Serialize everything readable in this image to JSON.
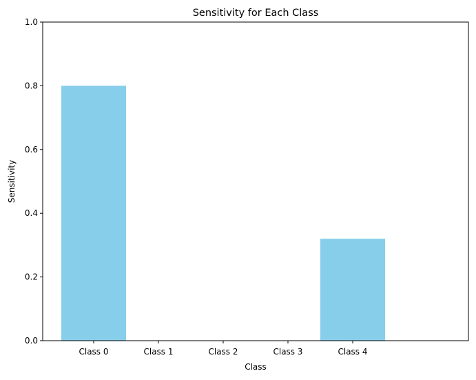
{
  "chart_data": {
    "type": "bar",
    "title": "Sensitivity for Each Class",
    "xlabel": "Class",
    "ylabel": "Sensitivity",
    "categories": [
      "Class 0",
      "Class 1",
      "Class 2",
      "Class 3",
      "Class 4"
    ],
    "values": [
      0.8,
      0.0,
      0.0,
      0.0,
      0.32
    ],
    "ylim": [
      0,
      1
    ],
    "yticks": [
      "0.0",
      "0.2",
      "0.4",
      "0.6",
      "0.8",
      "1.0"
    ],
    "bar_color": "#87ceeb",
    "grid": false,
    "legend": "none"
  }
}
